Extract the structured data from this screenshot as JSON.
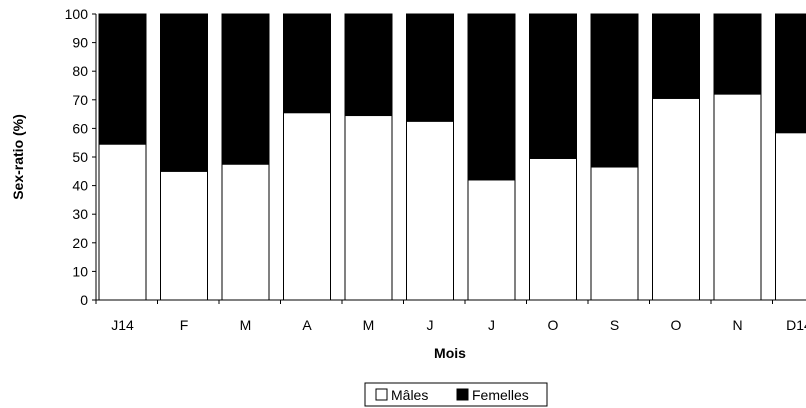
{
  "chart_data": {
    "type": "bar",
    "stacked": true,
    "percent_stacked": true,
    "categories": [
      "J14",
      "F",
      "M",
      "A",
      "M",
      "J",
      "J",
      "O",
      "S",
      "O",
      "N",
      "D14"
    ],
    "series": [
      {
        "name": "Mâles",
        "color": "#ffffff",
        "values": [
          54.5,
          45,
          47.5,
          65.5,
          64.5,
          62.5,
          42,
          49.5,
          46.5,
          70.5,
          72,
          58.5
        ]
      },
      {
        "name": "Femelles",
        "color": "#000000",
        "values": [
          45.5,
          55,
          52.5,
          34.5,
          35.5,
          37.5,
          58,
          50.5,
          53.5,
          29.5,
          28,
          41.5
        ]
      }
    ],
    "title": "",
    "xlabel": "Mois",
    "ylabel": "Sex-ratio (%)",
    "ylim": [
      0,
      100
    ],
    "yticks": [
      0,
      10,
      20,
      30,
      40,
      50,
      60,
      70,
      80,
      90,
      100
    ],
    "grid": false,
    "legend": "bottom-center"
  }
}
